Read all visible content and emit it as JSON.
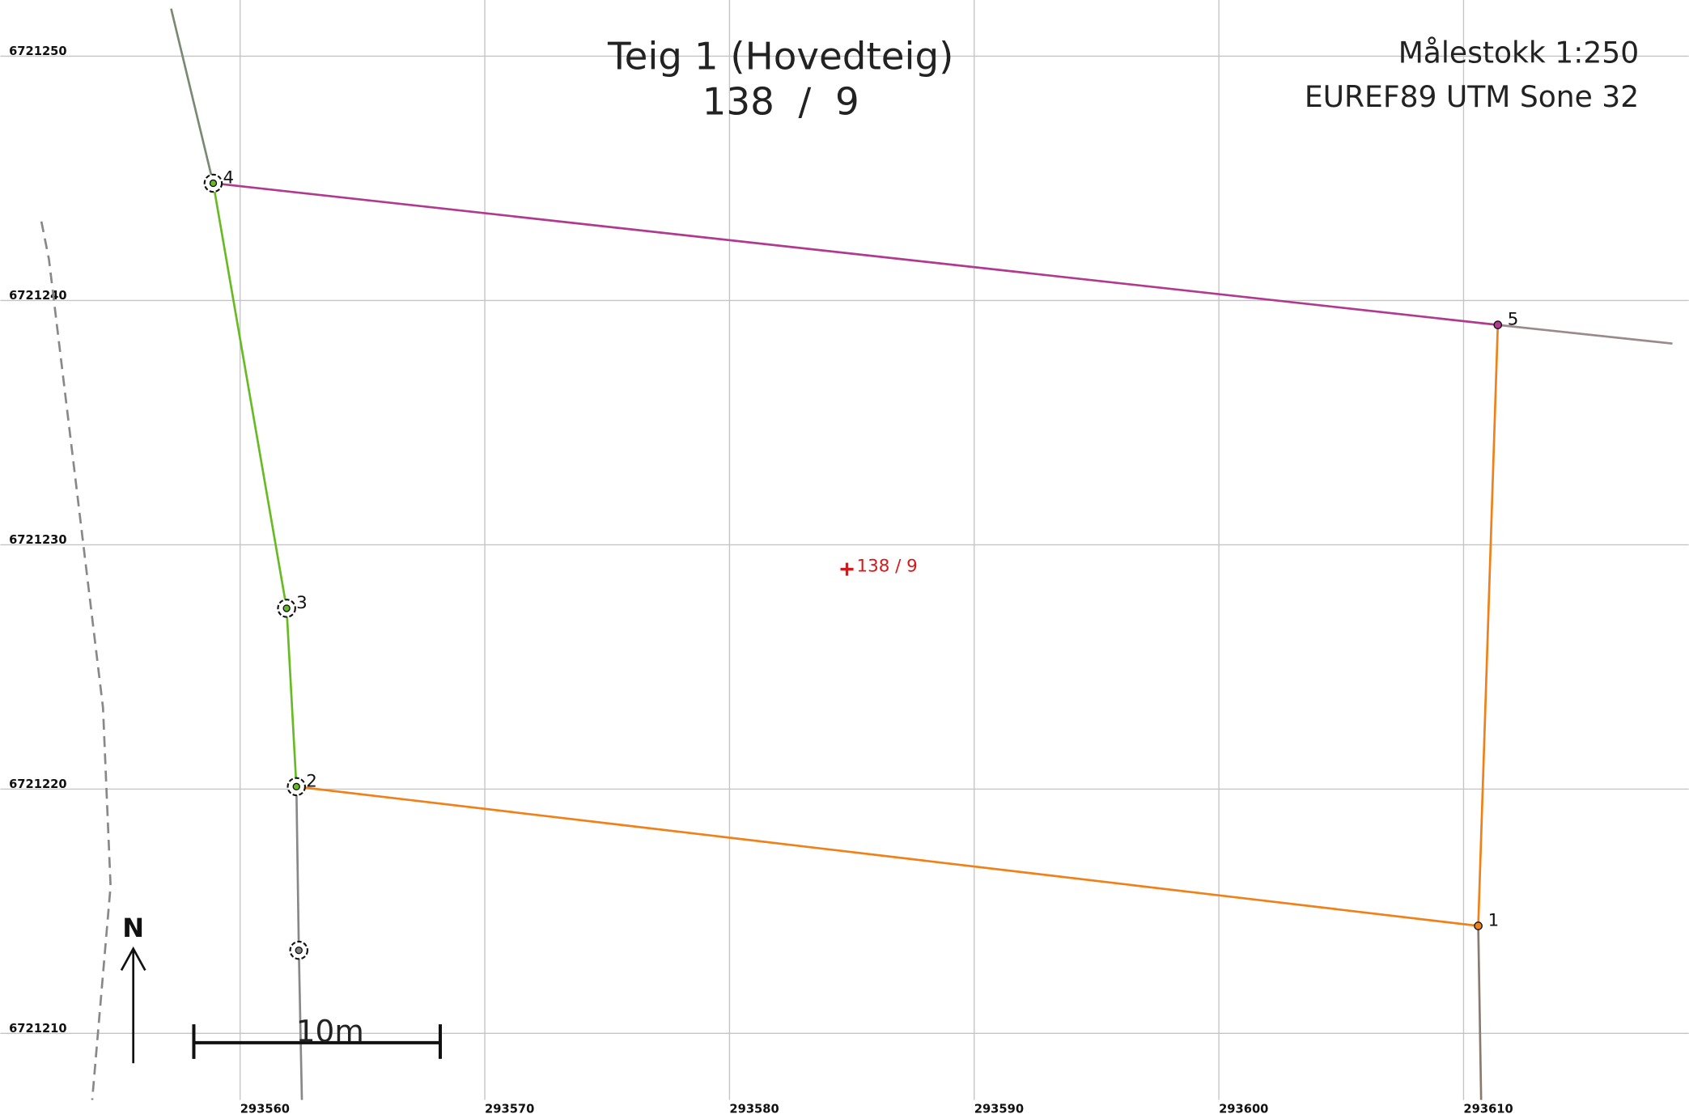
{
  "map": {
    "title": "Teig 1 (Hovedteig)",
    "subtitle": "138  /  9",
    "scale": "Målestokk 1:250",
    "crs": "EUREF89 UTM Sone 32",
    "xlim": [
      293550.2,
      293619.2
    ],
    "ylim": [
      6721206.7,
      6721252.3
    ],
    "xticks": [
      293560,
      293570,
      293580,
      293590,
      293600,
      293610
    ],
    "yticks": [
      6721210,
      6721220,
      6721230,
      6721240,
      6721250
    ],
    "north": "N",
    "scalebar": "10m",
    "parcel": {
      "label": "138 / 9",
      "x": 293584.8,
      "y": 6721229.0
    },
    "points": [
      {
        "label": "1",
        "x": 293610.6,
        "y": 6721214.4
      },
      {
        "label": "2",
        "x": 293562.3,
        "y": 6721220.1
      },
      {
        "label": "3",
        "x": 293561.9,
        "y": 6721227.4
      },
      {
        "label": "4",
        "x": 293558.9,
        "y": 6721244.8
      },
      {
        "label": "5",
        "x": 293611.4,
        "y": 6721239.0
      },
      {
        "x": 293562.4,
        "y": 6721213.4
      }
    ]
  }
}
